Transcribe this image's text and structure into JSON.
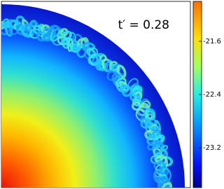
{
  "annotation": "t′ = 0.28",
  "colorbar": {
    "lim": [
      -23.8,
      -21.0
    ],
    "ticks": [
      -21.6,
      -22.4,
      -23.2
    ]
  }
}
